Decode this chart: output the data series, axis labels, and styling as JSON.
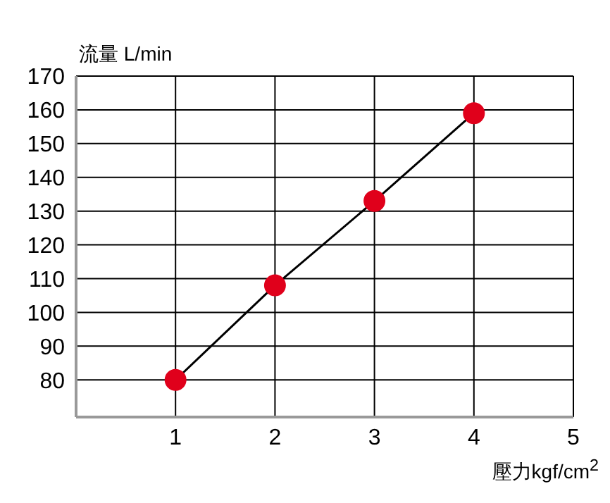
{
  "chart_data": {
    "type": "line",
    "xlabel": "壓力kgf/cm$^{2}$",
    "ylabel": "流量 L/min",
    "x": [
      1,
      2,
      3,
      4
    ],
    "series": [
      {
        "color": "#e0001b",
        "values": [
          80,
          108,
          133,
          159
        ]
      }
    ],
    "xlim": [
      0,
      5
    ],
    "xticks": [
      1,
      2,
      3,
      4,
      5
    ],
    "ylim": [
      69,
      170
    ],
    "yticks": [
      80,
      90,
      100,
      110,
      120,
      130,
      140,
      150,
      160,
      170
    ],
    "grid": true,
    "marker": "circle",
    "line_style": "solid"
  }
}
